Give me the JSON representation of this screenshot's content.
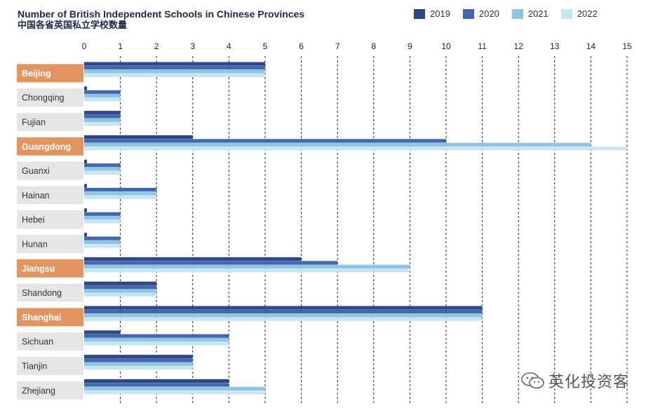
{
  "title": "Number of British Independent Schools in Chinese Provinces",
  "subtitle": "中国各省英国私立学校数量",
  "watermark": "英化投资客",
  "colors": {
    "2019": "#2e4787",
    "2020": "#4367ad",
    "2021": "#8fc5e0",
    "2022": "#c9e5f3",
    "highlight_label": "#e39561",
    "normal_label": "#e6e6e6"
  },
  "chart_data": {
    "type": "bar",
    "orientation": "horizontal",
    "xlim": [
      0,
      15
    ],
    "xticks": [
      0,
      1,
      2,
      3,
      4,
      5,
      6,
      7,
      8,
      9,
      10,
      11,
      12,
      13,
      14,
      15
    ],
    "grid": "vertical dashed",
    "legend_position": "top-right",
    "categories": [
      "Beijing",
      "Chongqing",
      "Fujian",
      "Guangdong",
      "Guanxi",
      "Hainan",
      "Hebei",
      "Hunan",
      "Jiangsu",
      "Shandong",
      "Shanghai",
      "Sichuan",
      "Tianjin",
      "Zhejiang"
    ],
    "highlighted": [
      "Beijing",
      "Guangdong",
      "Jiangsu",
      "Shanghai"
    ],
    "series": [
      {
        "name": "2019",
        "values": [
          5,
          0,
          1,
          3,
          0,
          0,
          0,
          0,
          6,
          2,
          11,
          1,
          3,
          4
        ]
      },
      {
        "name": "2020",
        "values": [
          5,
          1,
          1,
          10,
          1,
          2,
          1,
          1,
          7,
          2,
          11,
          4,
          3,
          4
        ]
      },
      {
        "name": "2021",
        "values": [
          5,
          1,
          1,
          14,
          1,
          2,
          1,
          1,
          9,
          2,
          11,
          4,
          3,
          5
        ]
      },
      {
        "name": "2022",
        "values": [
          5,
          1,
          1,
          15,
          1,
          2,
          1,
          1,
          9,
          2,
          11,
          4,
          3,
          5
        ]
      }
    ]
  }
}
